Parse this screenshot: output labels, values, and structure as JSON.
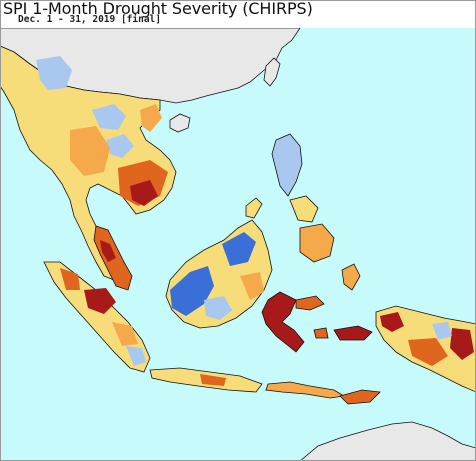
{
  "map": {
    "title": "SPI 1-Month Drought Severity (CHIRPS)",
    "subtitle": "Dec. 1 - 31, 2019 [final]",
    "colors": {
      "ocean": "#c7fbfb",
      "land_neutral": "#e8e8e8",
      "land_mild_dry": "#f7dc7a",
      "land_moderate_dry": "#f5a94a",
      "land_severe_dry": "#e0651f",
      "land_extreme_dry": "#a81a1a",
      "land_wet": "#a8c8f0",
      "land_very_wet": "#3a6fd8",
      "outline": "#111111"
    }
  }
}
